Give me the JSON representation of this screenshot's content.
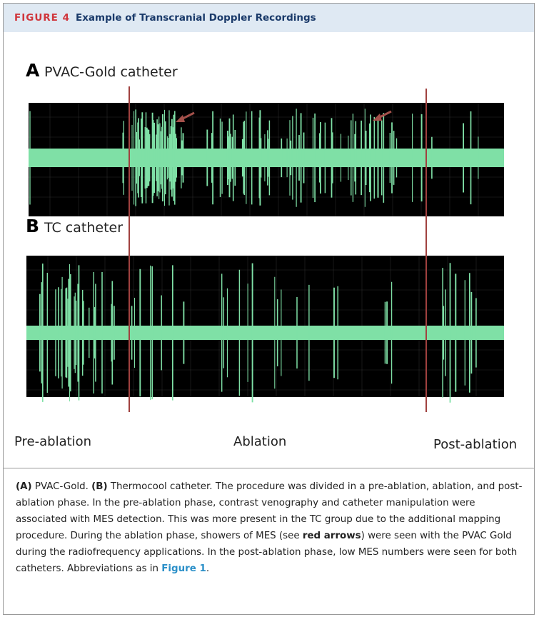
{
  "header": {
    "figure_label": "FIGURE 4",
    "title": "Example of Transcranial Doppler Recordings"
  },
  "panels": [
    {
      "letter": "A",
      "label": "PVAC-Gold catheter"
    },
    {
      "letter": "B",
      "label": "TC catheter"
    }
  ],
  "phases": [
    "Pre-ablation",
    "Ablation",
    "Post-ablation"
  ],
  "caption": [
    {
      "text": "(A)",
      "style": "bold"
    },
    {
      "text": " PVAC-Gold. ",
      "style": "normal"
    },
    {
      "text": "(B)",
      "style": "bold"
    },
    {
      "text": " Thermocool catheter. The procedure was divided in a pre-ablation, ablation, and post-ablation phase. In the pre-ablation phase, contrast venography and catheter manipulation were associated with MES detection. This was more present in the TC group due to the additional mapping procedure. During the ablation phase, showers of MES (see ",
      "style": "normal"
    },
    {
      "text": "red arrows",
      "style": "bold"
    },
    {
      "text": ") were seen with the PVAC Gold during the radiofrequency applications. In the post-ablation phase, low MES numbers were seen for both catheters. Abbreviations as in ",
      "style": "normal"
    },
    {
      "text": "Figure 1",
      "style": "link"
    },
    {
      "text": ".",
      "style": "normal"
    }
  ]
}
